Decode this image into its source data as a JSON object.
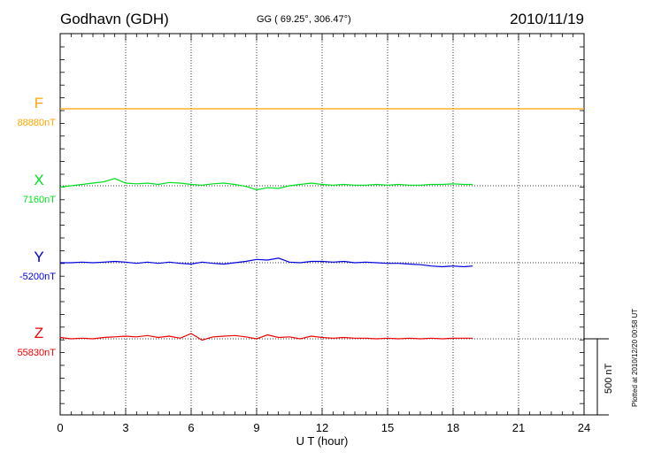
{
  "header": {
    "station": "Godhavn (GDH)",
    "coords": "GG ( 69.25°, 306.47°)",
    "date": "2010/11/19"
  },
  "footer": {
    "plotted": "Plotted at 2010/12/20 00:58 UT",
    "scale_label": "500 nT"
  },
  "colors": {
    "F": "#ffa500",
    "X": "#00e020",
    "Y": "#0000dd",
    "Z": "#ee0000"
  },
  "chart_data": {
    "type": "line",
    "title": "",
    "xlabel": "U T (hour)",
    "ylabel": "",
    "xlim": [
      0,
      24
    ],
    "x_ticks": [
      "0",
      "3",
      "6",
      "9",
      "12",
      "15",
      "18",
      "21",
      "24"
    ],
    "grid": true,
    "scale_bar_nT": 500,
    "series": [
      {
        "name": "F",
        "baseline_label": "88880nT",
        "color": "#ffa500",
        "x": [
          0,
          24
        ],
        "y": [
          0,
          0
        ]
      },
      {
        "name": "X",
        "baseline_label": "7160nT",
        "color": "#00e020",
        "x": [
          0,
          0.5,
          1,
          1.5,
          2,
          2.5,
          3,
          3.5,
          4,
          4.5,
          5,
          5.5,
          6,
          6.5,
          7,
          7.5,
          8,
          8.5,
          9,
          9.5,
          10,
          10.5,
          11,
          11.5,
          12,
          12.5,
          13,
          13.5,
          14,
          14.5,
          15,
          15.5,
          16,
          16.5,
          17,
          17.5,
          18,
          18.5,
          18.9
        ],
        "y": [
          -10,
          0,
          10,
          20,
          30,
          55,
          20,
          15,
          20,
          10,
          25,
          20,
          10,
          5,
          15,
          20,
          10,
          -5,
          -30,
          -15,
          -20,
          0,
          10,
          20,
          10,
          5,
          10,
          5,
          5,
          10,
          5,
          10,
          5,
          5,
          10,
          10,
          15,
          10,
          10
        ]
      },
      {
        "name": "Y",
        "baseline_label": "-5200nT",
        "color": "#0000dd",
        "x": [
          0,
          0.5,
          1,
          1.5,
          2,
          2.5,
          3,
          3.5,
          4,
          4.5,
          5,
          5.5,
          6,
          6.5,
          7,
          7.5,
          8,
          8.5,
          9,
          9.5,
          10,
          10.5,
          11,
          11.5,
          12,
          12.5,
          13,
          13.5,
          14,
          14.5,
          15,
          15.5,
          16,
          16.5,
          17,
          17.5,
          18,
          18.5,
          18.9
        ],
        "y": [
          0,
          0,
          5,
          0,
          5,
          10,
          5,
          -5,
          5,
          -5,
          5,
          -5,
          -10,
          5,
          -5,
          -10,
          0,
          10,
          25,
          20,
          35,
          5,
          0,
          10,
          10,
          5,
          10,
          0,
          5,
          0,
          -5,
          -5,
          -10,
          -15,
          -25,
          -30,
          -25,
          -30,
          -25
        ]
      },
      {
        "name": "Z",
        "baseline_label": "55830nT",
        "color": "#ee0000",
        "x": [
          0,
          0.5,
          1,
          1.5,
          2,
          2.5,
          3,
          3.5,
          4,
          4.5,
          5,
          5.5,
          6,
          6.5,
          7,
          7.5,
          8,
          8.5,
          9,
          9.5,
          10,
          10.5,
          11,
          11.5,
          12,
          12.5,
          13,
          13.5,
          14,
          14.5,
          15,
          15.5,
          16,
          16.5,
          17,
          17.5,
          18,
          18.5,
          18.9
        ],
        "y": [
          10,
          0,
          5,
          0,
          10,
          15,
          20,
          15,
          25,
          10,
          20,
          5,
          40,
          -10,
          15,
          20,
          25,
          15,
          0,
          30,
          10,
          15,
          0,
          20,
          10,
          5,
          10,
          5,
          5,
          0,
          5,
          0,
          5,
          0,
          5,
          0,
          5,
          5,
          5
        ]
      }
    ]
  }
}
